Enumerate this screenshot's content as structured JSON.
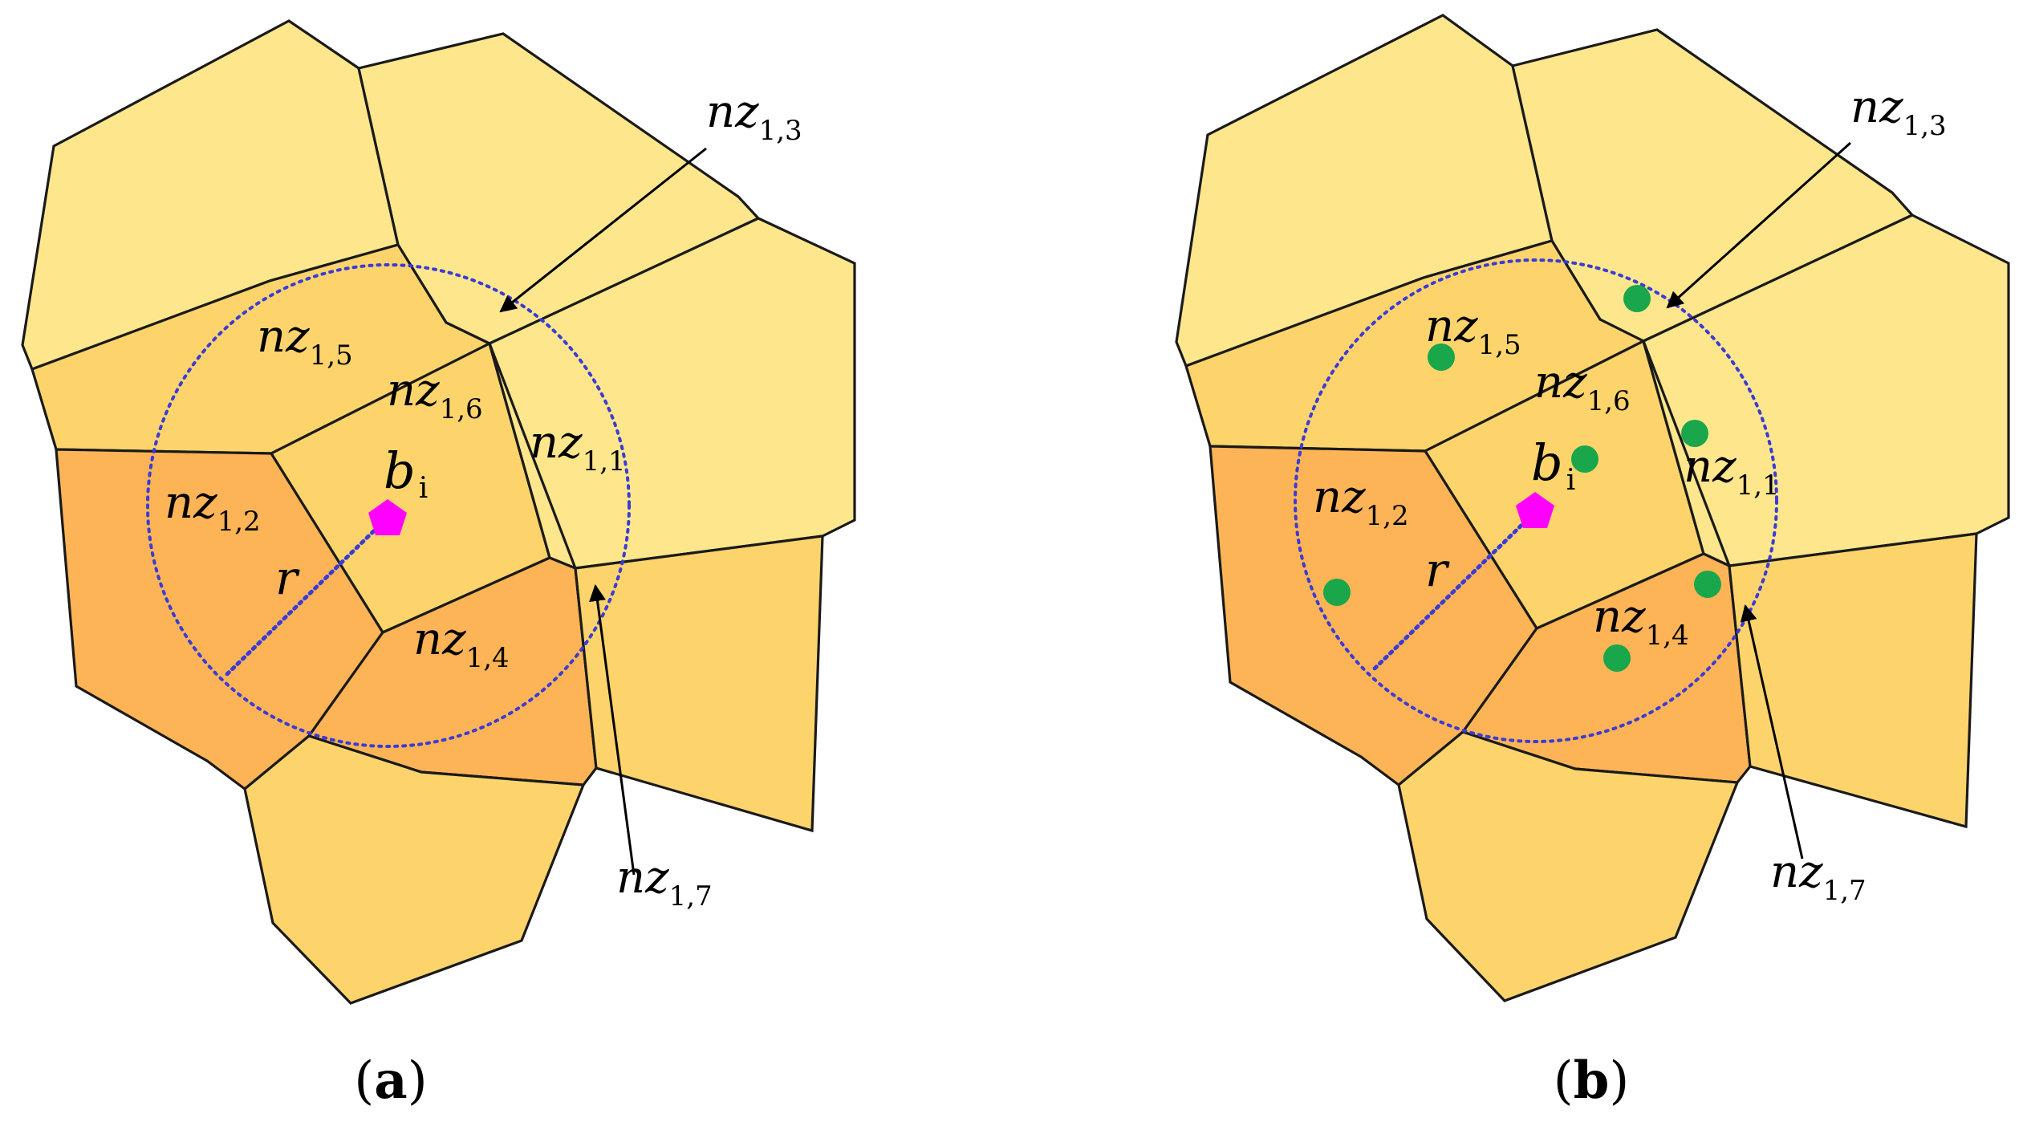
{
  "panels": [
    {
      "caption_open": "(",
      "caption_letter": "a",
      "caption_close": ")",
      "labels": {
        "nz13": {
          "base": "nz",
          "sub": "1,3"
        },
        "nz15": {
          "base": "nz",
          "sub": "1,5"
        },
        "nz16": {
          "base": "nz",
          "sub": "1,6"
        },
        "nz11": {
          "base": "nz",
          "sub": "1,1"
        },
        "nz12": {
          "base": "nz",
          "sub": "1,2"
        },
        "nz14": {
          "base": "nz",
          "sub": "1,4"
        },
        "nz17": {
          "base": "nz",
          "sub": "1,7"
        },
        "bi": {
          "base": "b",
          "sub": "i"
        },
        "r": "r"
      }
    },
    {
      "caption_open": "(",
      "caption_letter": "b",
      "caption_close": ")",
      "labels": {
        "nz13": {
          "base": "nz",
          "sub": "1,3"
        },
        "nz15": {
          "base": "nz",
          "sub": "1,5"
        },
        "nz16": {
          "base": "nz",
          "sub": "1,6"
        },
        "nz11": {
          "base": "nz",
          "sub": "1,1"
        },
        "nz12": {
          "base": "nz",
          "sub": "1,2"
        },
        "nz14": {
          "base": "nz",
          "sub": "1,4"
        },
        "nz17": {
          "base": "nz",
          "sub": "1,7"
        },
        "bi": {
          "base": "b",
          "sub": "i"
        },
        "r": "r"
      }
    }
  ],
  "colors": {
    "cell_light": "#FDE68C",
    "cell_mid": "#FDD46C",
    "cell_dark": "#FDB456",
    "circle": "#3b3bd6",
    "bi_marker": "#FF00FF",
    "sensor_dot": "#1AA64A"
  }
}
